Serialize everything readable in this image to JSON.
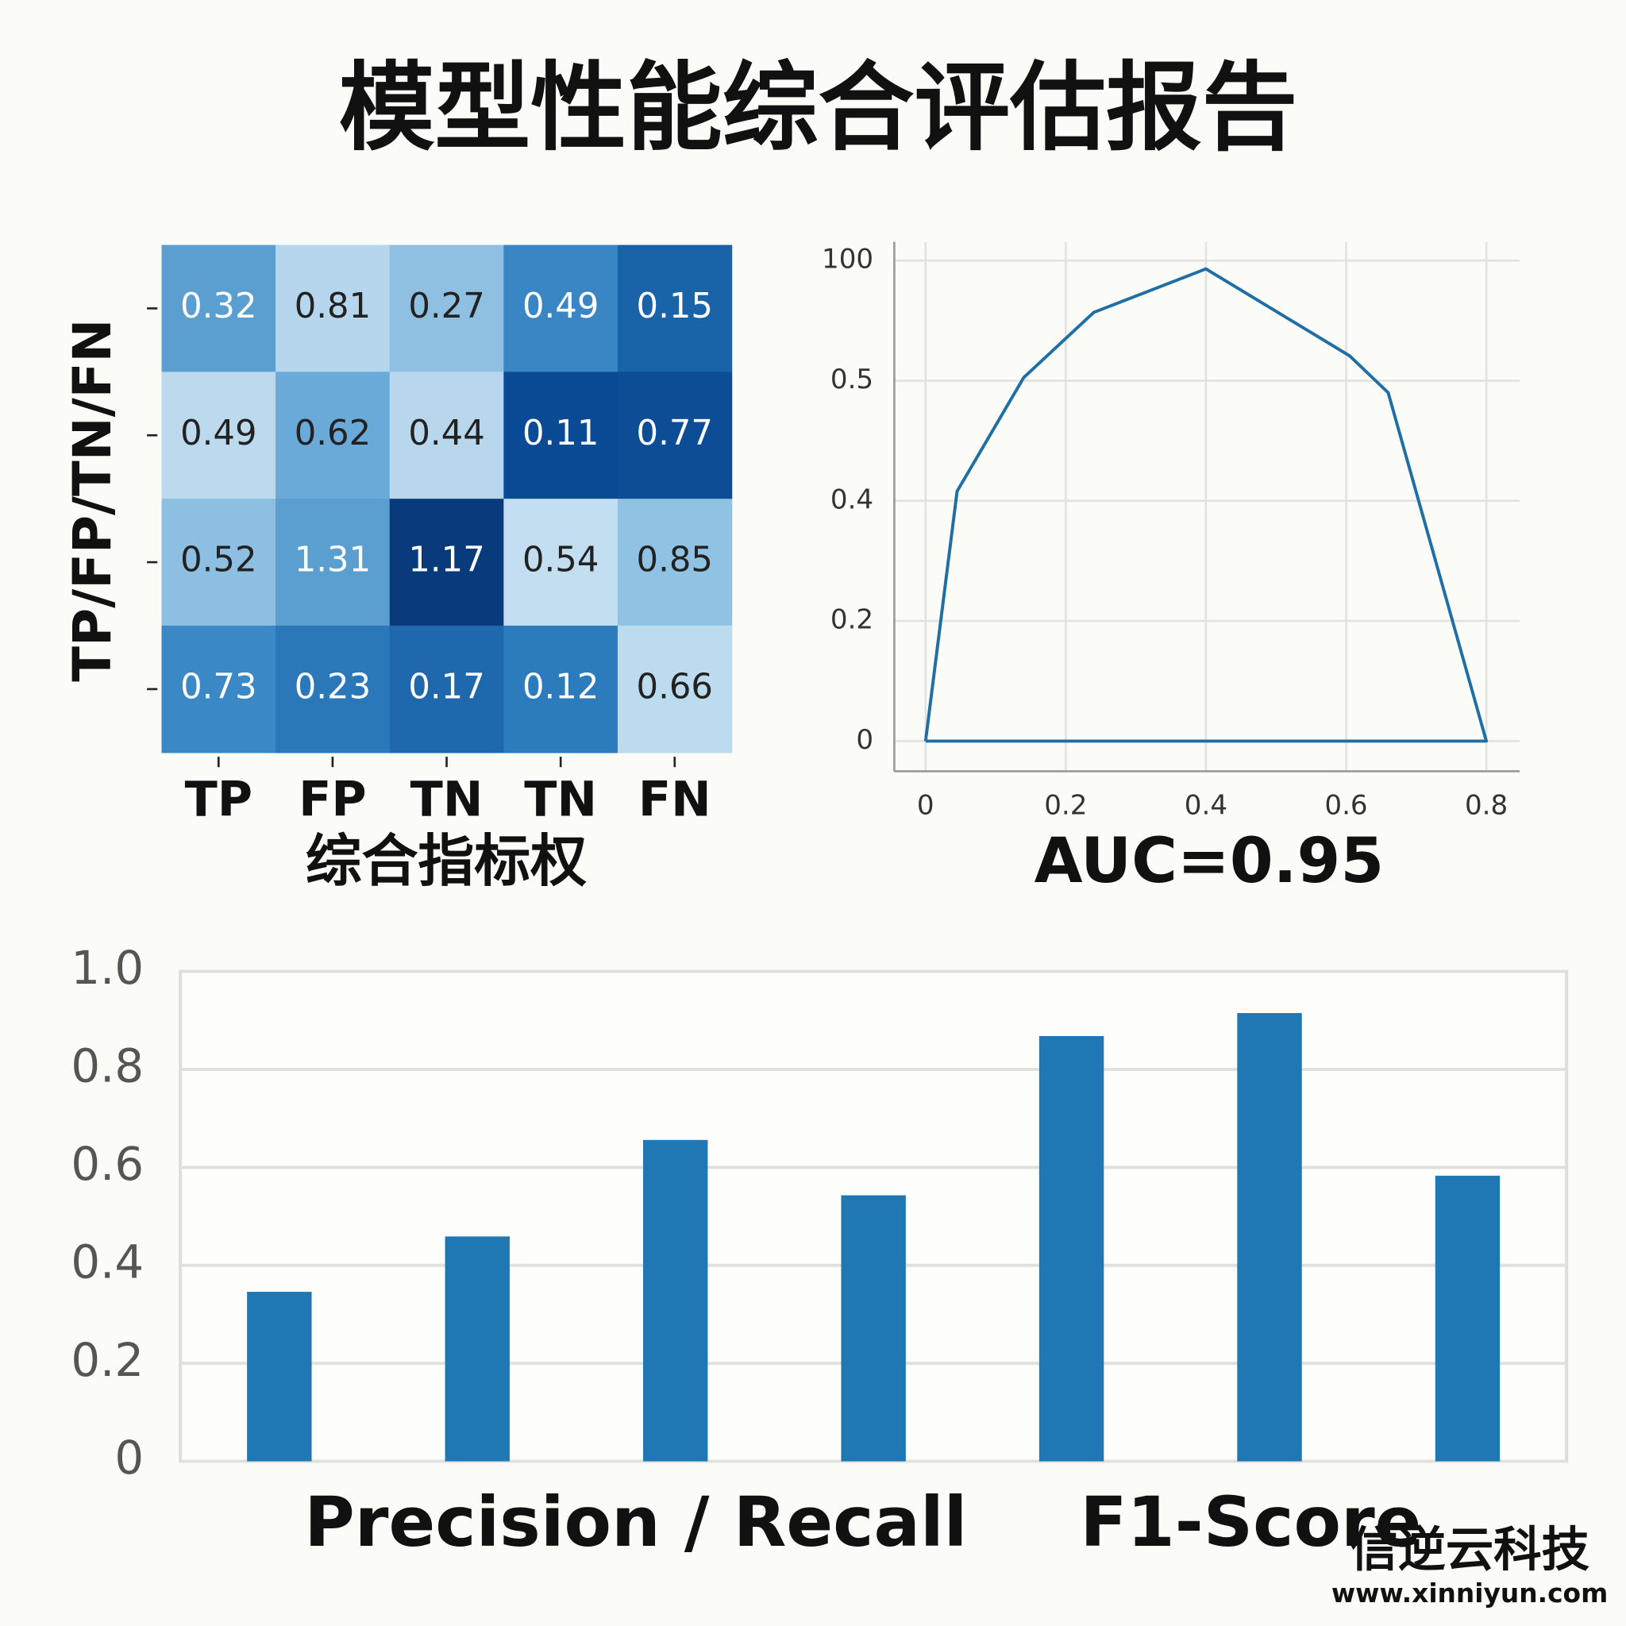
{
  "title": "模型性能综合评估报告",
  "chart_data": [
    {
      "type": "heatmap",
      "categories": [
        "TP",
        "FP",
        "TN",
        "TN",
        "FN"
      ],
      "ylabel": "TP/FP/TN/FN",
      "xlabel": "综合指标权",
      "values": [
        [
          0.32,
          0.81,
          0.27,
          0.49,
          0.15
        ],
        [
          0.49,
          0.62,
          0.44,
          0.11,
          0.77
        ],
        [
          0.52,
          1.31,
          1.17,
          0.54,
          0.85
        ],
        [
          0.73,
          0.23,
          0.17,
          0.12,
          0.66
        ]
      ],
      "colors": [
        [
          "#5b9fd0",
          "#b5d6ec",
          "#8fc0e2",
          "#3a86c4",
          "#1a63a8"
        ],
        [
          "#bcd9ee",
          "#6aaad8",
          "#b8d7ed",
          "#0b4a94",
          "#0d4d96"
        ],
        [
          "#8cbfe2",
          "#5b9fd0",
          "#083a7c",
          "#c2def0",
          "#8fc2e3"
        ],
        [
          "#3a88c6",
          "#2a78ba",
          "#1f68ad",
          "#2c7bbc",
          "#bcdbef"
        ]
      ]
    },
    {
      "type": "line",
      "annotation": "AUC=0.95",
      "color": "#1f6fa5",
      "grid": true,
      "x": [
        0,
        0.045,
        0.14,
        0.24,
        0.4,
        0.605,
        0.66,
        0.8,
        0
      ],
      "values": [
        0,
        0.408,
        3.07,
        57.1,
        93.1,
        21.1,
        0.49,
        0,
        0
      ],
      "xlim": [
        0,
        0.8
      ],
      "xticks": [
        0,
        0.2,
        0.4,
        0.6,
        0.8
      ],
      "ylim": [
        0,
        100
      ],
      "yticks": [
        0,
        0.2,
        0.4,
        0.5,
        100
      ],
      "yscale": "tick-spaced"
    },
    {
      "type": "bar",
      "categories": [
        null,
        null,
        null,
        null,
        null,
        null,
        null
      ],
      "color": "#1f77b4",
      "grid": true,
      "values": [
        0.346,
        0.459,
        0.656,
        0.543,
        0.868,
        0.915,
        0.583
      ],
      "ylim": [
        0,
        1
      ],
      "yticks": [
        0,
        0.2,
        0.4,
        0.6,
        0.8,
        {
          "value": 1,
          "label": "1.0"
        }
      ],
      "annotations": [
        "Precision / Recall",
        "F1-Score"
      ]
    }
  ],
  "watermark": {
    "name": "信逆云科技",
    "url": "www.xinniyun.com"
  }
}
